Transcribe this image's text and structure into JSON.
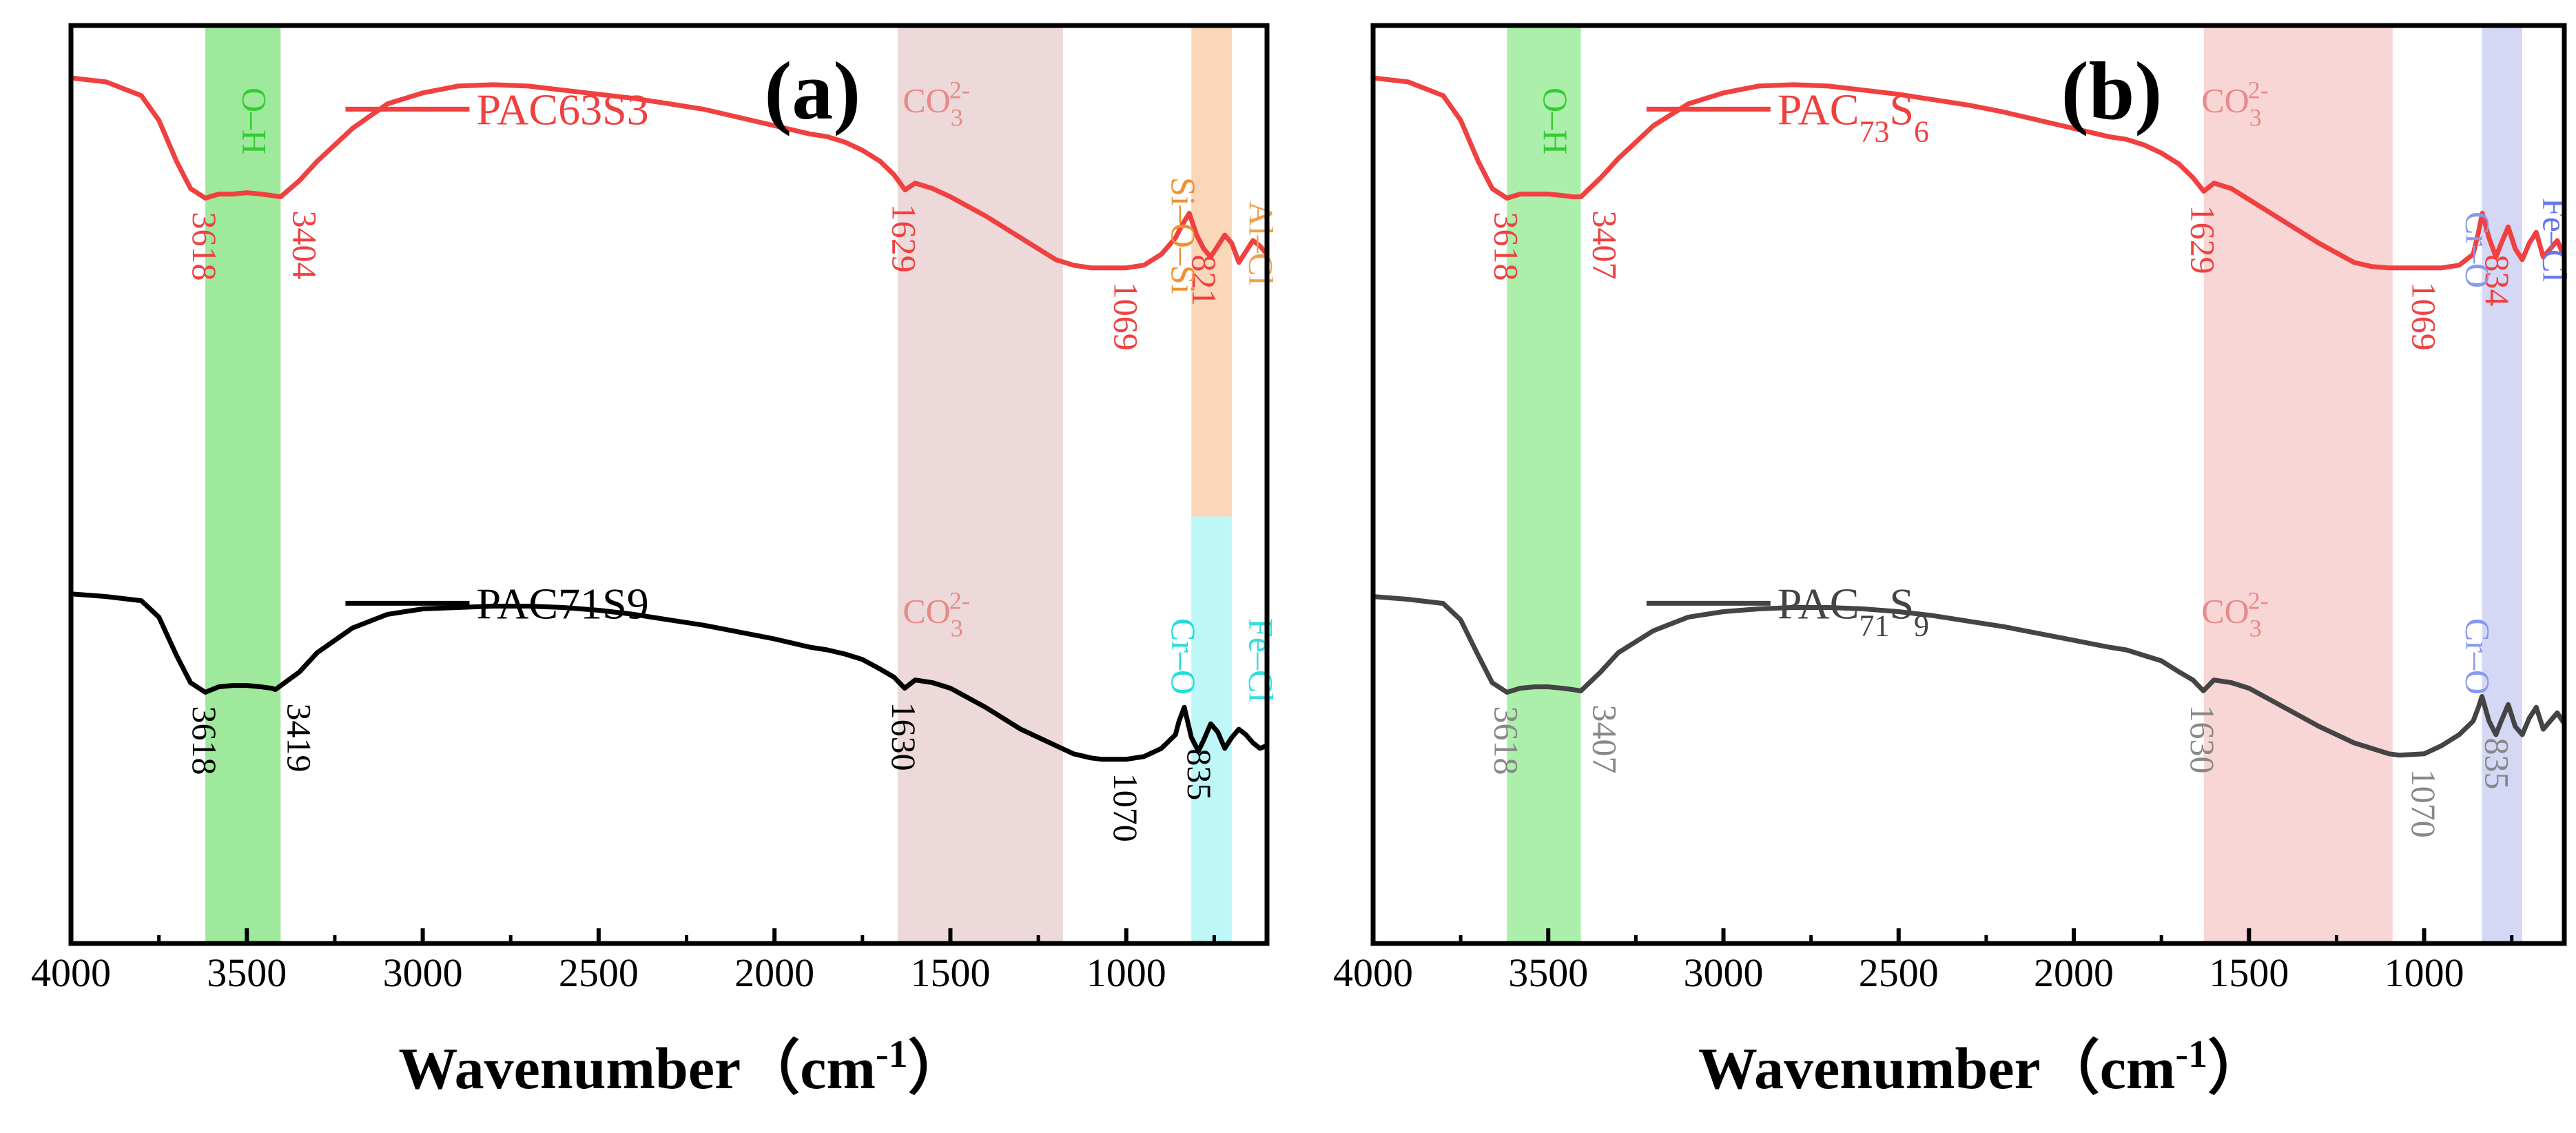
{
  "chart_data": [
    {
      "type": "line",
      "title": "(a)",
      "xlabel": "Wavenumber（cm",
      "xlabel_sup": "-1",
      "xlabel_end": "）",
      "ylabel": "",
      "xlim": [
        4000,
        600
      ],
      "x_ticks": [
        4000,
        3500,
        3000,
        2500,
        2000,
        1500,
        1000
      ],
      "x_tick_labels": [
        "4000",
        "3500",
        "3000",
        "2500",
        "2000",
        "1500",
        "1000"
      ],
      "bands": [
        {
          "from": 3618,
          "to": 3404,
          "color": "#7ee27a",
          "label": "O–H",
          "label_color": "#33cc33"
        },
        {
          "from": 1650,
          "to": 1180,
          "color": "#e7cccc",
          "label": "",
          "label_color": "#e88a8a"
        },
        {
          "from": 815,
          "to": 700,
          "color": "#f7c9a0",
          "label": "Al–Cl",
          "label_color": "#f0a050",
          "label_extra": "Si–O–Si",
          "label_extra_color": "#f09030",
          "part": "top"
        },
        {
          "from": 815,
          "to": 700,
          "color": "#a8f4f4",
          "label": "Fe–Cl",
          "label_color": "#33dddd",
          "label_extra": "Cr–O",
          "label_extra_color": "#22dddd",
          "part": "bottom"
        }
      ],
      "series": [
        {
          "name": "PAC63S3",
          "legend": "PAC63S3",
          "color": "#f04040",
          "x": [
            4000,
            3900,
            3800,
            3750,
            3700,
            3660,
            3618,
            3580,
            3540,
            3500,
            3460,
            3430,
            3404,
            3350,
            3300,
            3200,
            3100,
            3000,
            2900,
            2800,
            2700,
            2600,
            2500,
            2400,
            2300,
            2200,
            2100,
            2000,
            1900,
            1850,
            1800,
            1750,
            1700,
            1660,
            1629,
            1600,
            1550,
            1500,
            1400,
            1300,
            1200,
            1150,
            1100,
            1069,
            1000,
            950,
            900,
            860,
            840,
            821,
            800,
            780,
            760,
            740,
            720,
            700,
            680,
            660,
            640,
            620,
            600
          ],
          "y": [
            0.985,
            0.97,
            0.92,
            0.83,
            0.68,
            0.58,
            0.545,
            0.56,
            0.56,
            0.565,
            0.56,
            0.555,
            0.55,
            0.61,
            0.68,
            0.8,
            0.89,
            0.93,
            0.955,
            0.96,
            0.955,
            0.94,
            0.925,
            0.91,
            0.89,
            0.87,
            0.84,
            0.81,
            0.78,
            0.77,
            0.75,
            0.72,
            0.68,
            0.63,
            0.575,
            0.6,
            0.58,
            0.55,
            0.48,
            0.4,
            0.32,
            0.3,
            0.29,
            0.29,
            0.29,
            0.3,
            0.34,
            0.4,
            0.45,
            0.49,
            0.41,
            0.36,
            0.33,
            0.37,
            0.41,
            0.38,
            0.31,
            0.35,
            0.39,
            0.37,
            0.34
          ],
          "peaks": [
            {
              "x": 3618,
              "label": "3618",
              "side": "left"
            },
            {
              "x": 3404,
              "label": "3404",
              "side": "right"
            },
            {
              "x": 1629,
              "label": "1629",
              "side": "left"
            },
            {
              "x": 1069,
              "label": "1069",
              "side": "right"
            },
            {
              "x": 821,
              "label": "821",
              "side": "below"
            }
          ],
          "co3_label": "CO",
          "co3_sub": "3",
          "co3_sup": "2-"
        },
        {
          "name": "PAC71S9",
          "legend": "PAC71S9",
          "color": "#000000",
          "x": [
            4000,
            3900,
            3800,
            3750,
            3700,
            3660,
            3618,
            3580,
            3540,
            3500,
            3460,
            3430,
            3419,
            3350,
            3300,
            3200,
            3100,
            3000,
            2900,
            2800,
            2700,
            2600,
            2500,
            2400,
            2300,
            2200,
            2100,
            2000,
            1900,
            1850,
            1800,
            1750,
            1700,
            1660,
            1630,
            1600,
            1550,
            1500,
            1400,
            1300,
            1200,
            1150,
            1100,
            1070,
            1000,
            950,
            900,
            860,
            850,
            835,
            815,
            795,
            780,
            760,
            740,
            720,
            700,
            680,
            660,
            640,
            620,
            600
          ],
          "y": [
            0.585,
            0.575,
            0.56,
            0.5,
            0.36,
            0.26,
            0.225,
            0.245,
            0.25,
            0.25,
            0.245,
            0.24,
            0.235,
            0.3,
            0.37,
            0.46,
            0.51,
            0.53,
            0.535,
            0.54,
            0.54,
            0.535,
            0.525,
            0.51,
            0.49,
            0.47,
            0.445,
            0.42,
            0.39,
            0.38,
            0.365,
            0.345,
            0.31,
            0.28,
            0.24,
            0.27,
            0.26,
            0.24,
            0.17,
            0.09,
            0.03,
            0.0,
            -0.015,
            -0.02,
            -0.02,
            -0.01,
            0.02,
            0.07,
            0.12,
            0.17,
            0.06,
            0.01,
            0.05,
            0.11,
            0.08,
            0.02,
            0.06,
            0.09,
            0.07,
            0.04,
            0.02,
            0.03
          ],
          "peaks": [
            {
              "x": 3618,
              "label": "3618",
              "side": "left"
            },
            {
              "x": 3419,
              "label": "3419",
              "side": "right"
            },
            {
              "x": 1630,
              "label": "1630",
              "side": "left"
            },
            {
              "x": 1070,
              "label": "1070",
              "side": "right"
            },
            {
              "x": 835,
              "label": "835",
              "side": "below"
            }
          ],
          "co3_label": "CO",
          "co3_sub": "3",
          "co3_sup": "2-"
        }
      ]
    },
    {
      "type": "line",
      "title": "(b)",
      "xlabel": "Wavenumber（cm",
      "xlabel_sup": "-1",
      "xlabel_end": "）",
      "ylabel": "",
      "xlim": [
        4000,
        600
      ],
      "x_ticks": [
        4000,
        3500,
        3000,
        2500,
        2000,
        1500,
        1000
      ],
      "x_tick_labels": [
        "4000",
        "3500",
        "3000",
        "2500",
        "2000",
        "1500",
        "1000"
      ],
      "bands": [
        {
          "from": 3618,
          "to": 3407,
          "color": "#8fe98f",
          "label": "O–H",
          "label_color": "#33cc33"
        },
        {
          "from": 1629,
          "to": 1090,
          "color": "#f7c8c8",
          "label": "",
          "label_color": "#e88a8a"
        },
        {
          "from": 835,
          "to": 720,
          "color": "#c5cbf1",
          "label": "Fe–Cl",
          "label_color": "#6677ee",
          "label_extra": "Cr–O",
          "label_extra_color": "#8899ee",
          "part": "full"
        }
      ],
      "series": [
        {
          "name": "PAC73S6",
          "legend_base": "PAC",
          "legend_sub1": "73",
          "legend_mid": "S",
          "legend_sub2": "6",
          "color": "#f04040",
          "x": [
            4000,
            3900,
            3800,
            3750,
            3700,
            3660,
            3618,
            3580,
            3540,
            3500,
            3460,
            3430,
            3407,
            3350,
            3300,
            3200,
            3100,
            3000,
            2900,
            2800,
            2700,
            2600,
            2500,
            2400,
            2300,
            2200,
            2100,
            2000,
            1900,
            1850,
            1800,
            1750,
            1700,
            1660,
            1629,
            1600,
            1550,
            1500,
            1400,
            1300,
            1200,
            1150,
            1100,
            1069,
            1000,
            950,
            900,
            860,
            845,
            834,
            815,
            795,
            780,
            760,
            740,
            720,
            700,
            680,
            660,
            640,
            620,
            600
          ],
          "y": [
            0.985,
            0.97,
            0.92,
            0.83,
            0.68,
            0.58,
            0.545,
            0.56,
            0.56,
            0.56,
            0.555,
            0.55,
            0.55,
            0.62,
            0.69,
            0.81,
            0.89,
            0.93,
            0.955,
            0.96,
            0.955,
            0.94,
            0.925,
            0.905,
            0.885,
            0.86,
            0.83,
            0.8,
            0.77,
            0.76,
            0.74,
            0.71,
            0.67,
            0.62,
            0.57,
            0.6,
            0.58,
            0.54,
            0.46,
            0.38,
            0.31,
            0.295,
            0.29,
            0.29,
            0.29,
            0.29,
            0.3,
            0.34,
            0.42,
            0.49,
            0.4,
            0.33,
            0.38,
            0.44,
            0.36,
            0.32,
            0.38,
            0.42,
            0.33,
            0.36,
            0.39,
            0.33
          ],
          "peaks": [
            {
              "x": 3618,
              "label": "3618",
              "side": "left"
            },
            {
              "x": 3407,
              "label": "3407",
              "side": "right"
            },
            {
              "x": 1629,
              "label": "1629",
              "side": "left"
            },
            {
              "x": 1069,
              "label": "1069",
              "side": "right"
            },
            {
              "x": 834,
              "label": "834",
              "side": "below"
            }
          ],
          "co3_label": "CO",
          "co3_sub": "3",
          "co3_sup": "2-"
        },
        {
          "name": "PAC71S9",
          "legend_base": "PAC",
          "legend_sub1": "71",
          "legend_mid": "S",
          "legend_sub2": "9",
          "color": "#444444",
          "x": [
            4000,
            3900,
            3800,
            3750,
            3700,
            3660,
            3618,
            3580,
            3540,
            3500,
            3460,
            3430,
            3407,
            3350,
            3300,
            3200,
            3100,
            3000,
            2900,
            2800,
            2700,
            2600,
            2500,
            2400,
            2300,
            2200,
            2100,
            2000,
            1900,
            1850,
            1800,
            1750,
            1700,
            1660,
            1630,
            1600,
            1550,
            1500,
            1400,
            1300,
            1200,
            1150,
            1100,
            1070,
            1000,
            950,
            900,
            860,
            845,
            835,
            815,
            795,
            780,
            760,
            740,
            720,
            700,
            680,
            660,
            640,
            620,
            600
          ],
          "y": [
            0.575,
            0.565,
            0.55,
            0.49,
            0.36,
            0.26,
            0.225,
            0.24,
            0.245,
            0.245,
            0.24,
            0.235,
            0.23,
            0.3,
            0.37,
            0.45,
            0.5,
            0.52,
            0.53,
            0.535,
            0.535,
            0.53,
            0.52,
            0.505,
            0.485,
            0.465,
            0.44,
            0.415,
            0.39,
            0.38,
            0.36,
            0.34,
            0.3,
            0.27,
            0.23,
            0.27,
            0.26,
            0.24,
            0.17,
            0.1,
            0.04,
            0.02,
            0.0,
            -0.005,
            0.0,
            0.03,
            0.07,
            0.12,
            0.17,
            0.21,
            0.12,
            0.07,
            0.12,
            0.18,
            0.1,
            0.07,
            0.13,
            0.17,
            0.09,
            0.12,
            0.15,
            0.11
          ],
          "peaks": [
            {
              "x": 3618,
              "label": "3618",
              "side": "left"
            },
            {
              "x": 3407,
              "label": "3407",
              "side": "right"
            },
            {
              "x": 1630,
              "label": "1630",
              "side": "left"
            },
            {
              "x": 1070,
              "label": "1070",
              "side": "right"
            },
            {
              "x": 835,
              "label": "835",
              "side": "below"
            }
          ],
          "co3_label": "CO",
          "co3_sub": "3",
          "co3_sup": "2-"
        }
      ]
    }
  ],
  "colors": {
    "red": "#f04040",
    "black": "#000000",
    "gray": "#444444",
    "peak_gray": "#888888",
    "co3": "#e88a8a"
  }
}
